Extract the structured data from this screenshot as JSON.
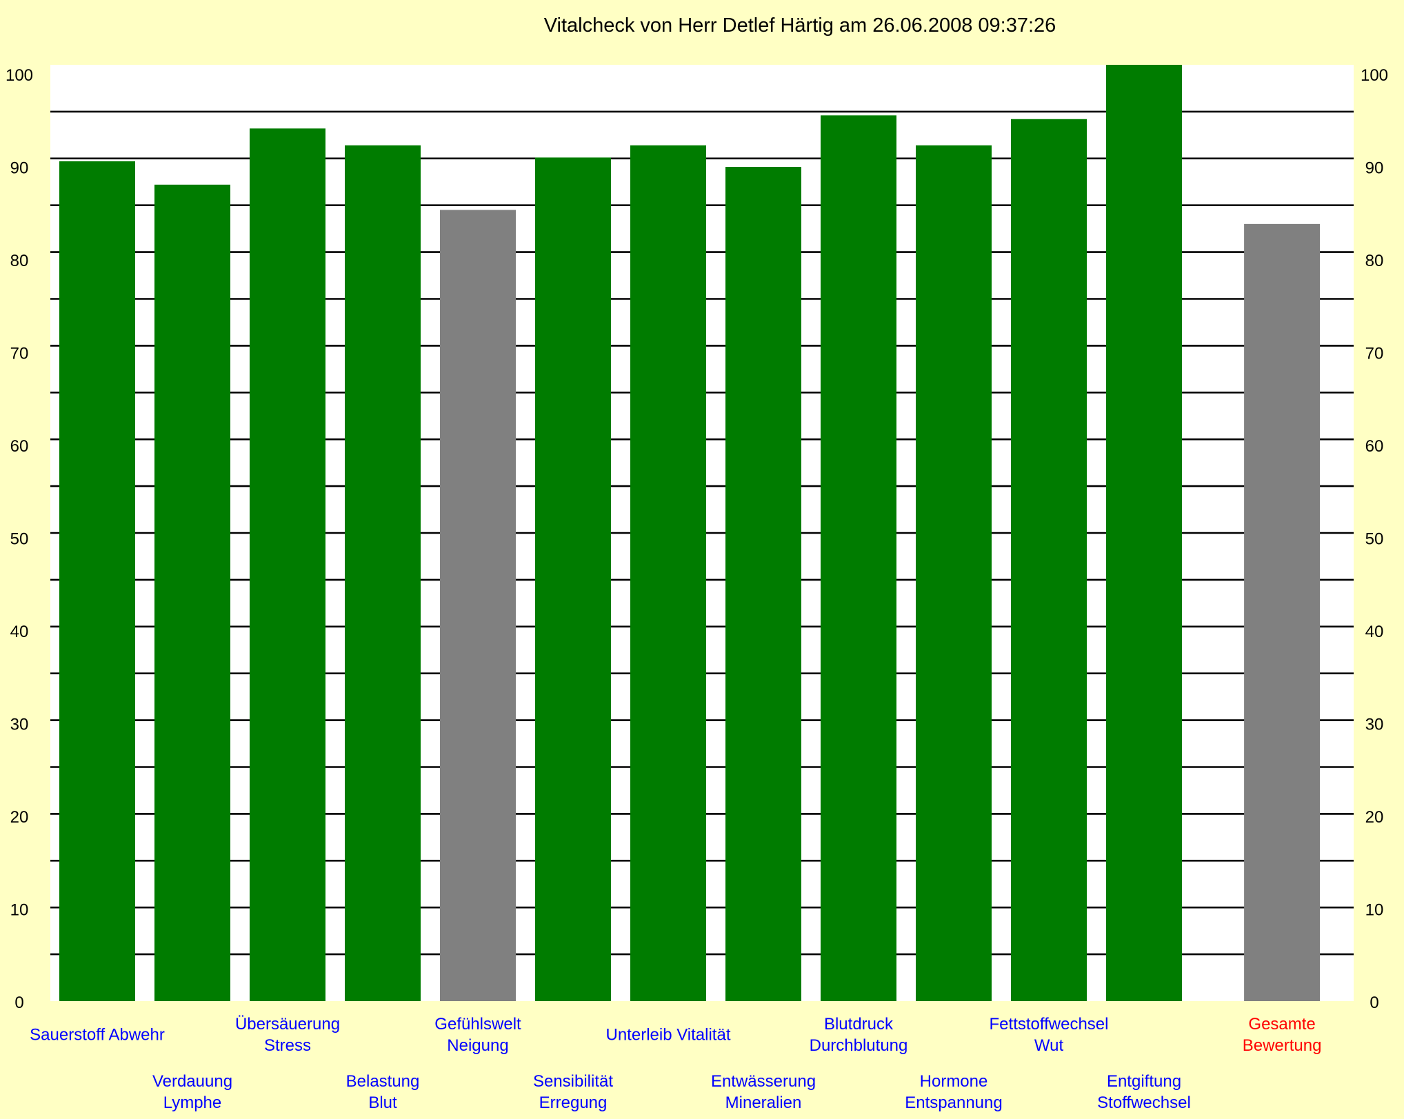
{
  "chart_data": {
    "type": "bar",
    "title": "Vitalcheck von Herr Detlef Härtig am 26.06.2008 09:37:26",
    "xlabel": "",
    "ylabel": "",
    "ylim": [
      0,
      100
    ],
    "yticks": [
      "0",
      "10",
      "20",
      "30",
      "40",
      "50",
      "60",
      "70",
      "80",
      "90",
      "100"
    ],
    "grid_step": 5,
    "grid": true,
    "categories": [
      [
        "Sauerstoff Abwehr"
      ],
      [
        "Verdauung",
        "Lymphe"
      ],
      [
        "Übersäuerung",
        "Stress"
      ],
      [
        "Belastung",
        "Blut"
      ],
      [
        "Gefühlswelt",
        "Neigung"
      ],
      [
        "Sensibilität",
        "Erregung"
      ],
      [
        "Unterleib Vitalität"
      ],
      [
        "Entwässerung",
        "Mineralien"
      ],
      [
        "Blutdruck",
        "Durchblutung"
      ],
      [
        "Hormone",
        "Entspannung"
      ],
      [
        "Fettstoffwechsel",
        "Wut"
      ],
      [
        "Entgiftung",
        "Stoffwechsel"
      ],
      [
        "Gesamte",
        "Bewertung"
      ]
    ],
    "values": [
      89.7,
      87.2,
      93.2,
      91.4,
      84.5,
      90.1,
      91.4,
      89.1,
      94.6,
      91.4,
      94.2,
      100,
      83.0
    ],
    "bar_colors": [
      "#007C00",
      "#007C00",
      "#007C00",
      "#007C00",
      "#808080",
      "#007C00",
      "#007C00",
      "#007C00",
      "#007C00",
      "#007C00",
      "#007C00",
      "#007C00",
      "#808080"
    ],
    "label_colors": [
      "#0000FF",
      "#0000FF",
      "#0000FF",
      "#0000FF",
      "#0000FF",
      "#0000FF",
      "#0000FF",
      "#0000FF",
      "#0000FF",
      "#0000FF",
      "#0000FF",
      "#0000FF",
      "#FF0000"
    ]
  }
}
